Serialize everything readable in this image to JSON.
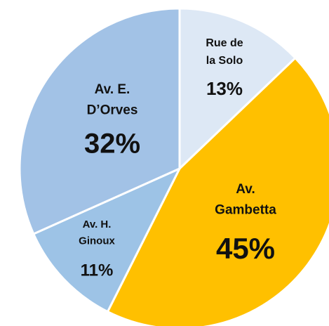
{
  "chart_data": {
    "type": "pie",
    "categories": [
      "Rue de la Solo",
      "Av. Gambetta",
      "Av. H. Ginoux",
      "Av. E. D’Orves"
    ],
    "values": [
      13,
      45,
      11,
      32
    ],
    "value_labels": [
      "13%",
      "45%",
      "11%",
      "32%"
    ],
    "colors": [
      "#dde8f5",
      "#ffc000",
      "#9dc3e6",
      "#a2c2e6"
    ]
  }
}
